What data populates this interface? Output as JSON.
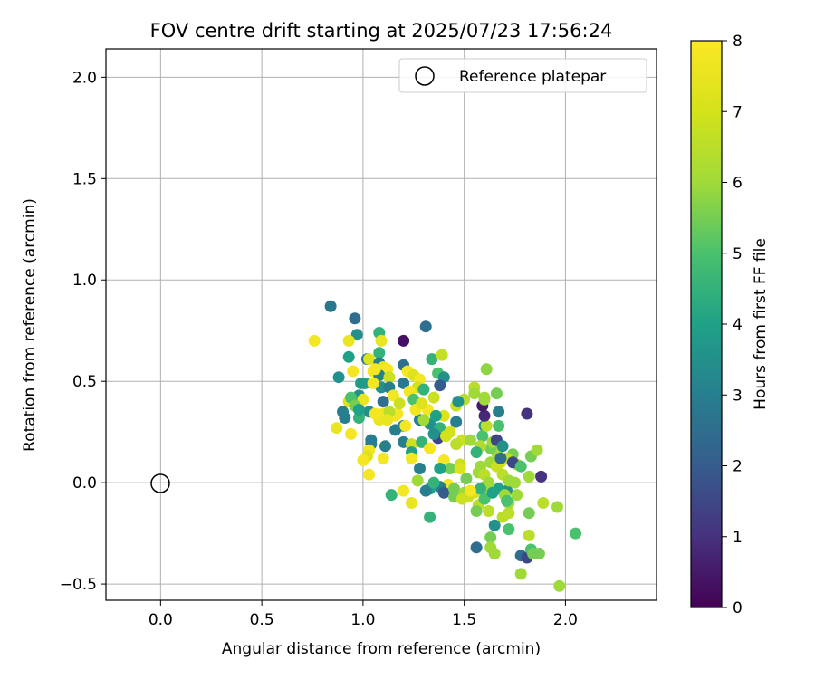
{
  "chart_data": {
    "type": "scatter",
    "title": "FOV centre drift starting at 2025/07/23 17:56:24",
    "xlabel": "Angular distance from reference (arcmin)",
    "ylabel": "Rotation from reference (arcmin)",
    "xlim": [
      -0.27,
      2.45
    ],
    "ylim": [
      -0.58,
      2.14
    ],
    "xticks": [
      0.0,
      0.5,
      1.0,
      1.5,
      2.0
    ],
    "xtick_labels": [
      "0.0",
      "0.5",
      "1.0",
      "1.5",
      "2.0"
    ],
    "yticks": [
      -0.5,
      0.0,
      0.5,
      1.0,
      1.5,
      2.0
    ],
    "ytick_labels": [
      "−0.5",
      "0.0",
      "0.5",
      "1.0",
      "1.5",
      "2.0"
    ],
    "grid": true,
    "legend": {
      "location": "upper right",
      "entries": [
        "Reference platepar"
      ]
    },
    "colorbar": {
      "label": "Hours from first FF file",
      "range": [
        0,
        8
      ],
      "ticks": [
        "0",
        "1",
        "2",
        "3",
        "4",
        "5",
        "6",
        "7",
        "8"
      ],
      "colormap": "viridis"
    },
    "reference_point": {
      "x": 0.0,
      "y": 0.0,
      "name": "Reference platepar"
    },
    "points": [
      [
        0.84,
        0.87,
        2.8
      ],
      [
        0.96,
        0.81,
        2.5
      ],
      [
        1.31,
        0.77,
        2.5
      ],
      [
        1.08,
        0.74,
        4.5
      ],
      [
        0.97,
        0.73,
        3.5
      ],
      [
        0.76,
        0.7,
        7.8
      ],
      [
        0.93,
        0.7,
        7.5
      ],
      [
        1.09,
        0.7,
        7.5
      ],
      [
        1.2,
        0.7,
        0.3
      ],
      [
        1.08,
        0.64,
        4.5
      ],
      [
        1.34,
        0.61,
        4.5
      ],
      [
        1.39,
        0.63,
        6.7
      ],
      [
        0.93,
        0.62,
        4.0
      ],
      [
        1.02,
        0.61,
        3.0
      ],
      [
        1.03,
        0.61,
        7.2
      ],
      [
        1.08,
        0.59,
        3.0
      ],
      [
        1.1,
        0.57,
        7.5
      ],
      [
        1.2,
        0.58,
        2.5
      ],
      [
        1.12,
        0.56,
        7.8
      ],
      [
        0.95,
        0.55,
        7.8
      ],
      [
        1.05,
        0.55,
        7.8
      ],
      [
        1.08,
        0.53,
        3.0
      ],
      [
        1.13,
        0.52,
        6.8
      ],
      [
        0.88,
        0.52,
        3.5
      ],
      [
        1.22,
        0.55,
        7.8
      ],
      [
        1.25,
        0.53,
        7.2
      ],
      [
        1.37,
        0.54,
        5.0
      ],
      [
        1.4,
        0.52,
        3.5
      ],
      [
        1.28,
        0.51,
        7.8
      ],
      [
        1.2,
        0.49,
        2.8
      ],
      [
        1.01,
        0.49,
        4.0
      ],
      [
        1.09,
        0.47,
        3.5
      ],
      [
        1.13,
        0.47,
        3.0
      ],
      [
        1.27,
        0.47,
        7.0
      ],
      [
        1.3,
        0.46,
        4.5
      ],
      [
        1.38,
        0.48,
        2.0
      ],
      [
        1.23,
        0.45,
        7.8
      ],
      [
        0.98,
        0.43,
        3.5
      ],
      [
        1.15,
        0.43,
        7.8
      ],
      [
        1.0,
        0.41,
        7.5
      ],
      [
        1.25,
        0.41,
        5.0
      ],
      [
        1.35,
        0.42,
        6.8
      ],
      [
        1.46,
        0.38,
        6.8
      ],
      [
        0.93,
        0.4,
        7.2
      ],
      [
        1.03,
        0.35,
        3.5
      ],
      [
        1.1,
        0.34,
        7.8
      ],
      [
        1.17,
        0.34,
        7.8
      ],
      [
        1.32,
        0.36,
        7.8
      ],
      [
        1.08,
        0.31,
        7.5
      ],
      [
        1.4,
        0.33,
        7.2
      ],
      [
        0.98,
        0.32,
        4.5
      ],
      [
        0.9,
        0.35,
        3.0
      ],
      [
        0.91,
        0.32,
        3.0
      ],
      [
        0.87,
        0.27,
        7.5
      ],
      [
        1.2,
        0.28,
        3.0
      ],
      [
        1.16,
        0.26,
        3.0
      ],
      [
        1.28,
        0.31,
        3.0
      ],
      [
        1.33,
        0.29,
        3.5
      ],
      [
        1.36,
        0.33,
        4.0
      ],
      [
        1.38,
        0.27,
        4.5
      ],
      [
        1.43,
        0.25,
        7.0
      ],
      [
        1.49,
        0.21,
        6.8
      ],
      [
        1.46,
        0.3,
        3.0
      ],
      [
        1.37,
        0.22,
        1.5
      ],
      [
        0.94,
        0.24,
        7.8
      ],
      [
        1.04,
        0.21,
        3.0
      ],
      [
        1.04,
        0.19,
        3.0
      ],
      [
        1.11,
        0.18,
        3.0
      ],
      [
        1.2,
        0.2,
        3.0
      ],
      [
        1.24,
        0.19,
        6.8
      ],
      [
        1.29,
        0.2,
        4.5
      ],
      [
        1.24,
        0.15,
        4.0
      ],
      [
        1.33,
        0.17,
        7.8
      ],
      [
        1.03,
        0.16,
        7.8
      ],
      [
        1.02,
        0.13,
        7.2
      ],
      [
        1.0,
        0.11,
        7.8
      ],
      [
        1.1,
        0.12,
        7.8
      ],
      [
        1.24,
        0.12,
        7.8
      ],
      [
        1.28,
        0.07,
        3.0
      ],
      [
        1.4,
        0.11,
        7.8
      ],
      [
        1.43,
        0.07,
        5.5
      ],
      [
        1.38,
        0.07,
        4.0
      ],
      [
        1.48,
        0.09,
        6.8
      ],
      [
        1.51,
        0.02,
        5.5
      ],
      [
        1.03,
        0.04,
        7.8
      ],
      [
        1.42,
        -0.01,
        7.8
      ],
      [
        1.38,
        -0.02,
        3.0
      ],
      [
        1.33,
        -0.03,
        4.0
      ],
      [
        1.31,
        -0.04,
        3.0
      ],
      [
        1.2,
        -0.04,
        7.8
      ],
      [
        1.14,
        -0.06,
        4.5
      ],
      [
        1.24,
        -0.1,
        7.5
      ],
      [
        1.33,
        -0.17,
        4.5
      ],
      [
        1.4,
        -0.05,
        2.0
      ],
      [
        1.45,
        -0.03,
        5.5
      ],
      [
        1.5,
        -0.05,
        6.0
      ],
      [
        1.52,
        -0.07,
        6.8
      ],
      [
        1.55,
        -0.05,
        7.0
      ],
      [
        1.57,
        -0.11,
        6.5
      ],
      [
        1.56,
        -0.14,
        5.5
      ],
      [
        1.6,
        -0.08,
        5.0
      ],
      [
        1.62,
        -0.14,
        6.5
      ],
      [
        1.56,
        -0.32,
        2.5
      ],
      [
        1.63,
        -0.27,
        5.5
      ],
      [
        1.63,
        -0.32,
        6.0
      ],
      [
        1.65,
        -0.35,
        6.0
      ],
      [
        1.65,
        -0.21,
        3.5
      ],
      [
        1.69,
        -0.17,
        6.5
      ],
      [
        1.72,
        -0.15,
        6.5
      ],
      [
        1.72,
        -0.23,
        5.0
      ],
      [
        1.71,
        -0.04,
        3.5
      ],
      [
        1.67,
        -0.03,
        4.0
      ],
      [
        1.7,
        -0.06,
        6.0
      ],
      [
        1.76,
        -0.06,
        6.0
      ],
      [
        1.72,
        -0.1,
        6.0
      ],
      [
        1.78,
        -0.36,
        2.5
      ],
      [
        1.78,
        -0.45,
        6.0
      ],
      [
        1.81,
        -0.37,
        1.5
      ],
      [
        1.82,
        -0.26,
        6.5
      ],
      [
        1.83,
        -0.33,
        5.0
      ],
      [
        1.82,
        -0.15,
        5.5
      ],
      [
        1.84,
        -0.35,
        5.5
      ],
      [
        1.87,
        -0.35,
        5.5
      ],
      [
        1.89,
        -0.1,
        6.5
      ],
      [
        1.96,
        -0.12,
        6.0
      ],
      [
        1.97,
        -0.51,
        6.0
      ],
      [
        2.05,
        -0.25,
        5.0
      ],
      [
        1.88,
        0.03,
        1.0
      ],
      [
        1.82,
        0.03,
        6.0
      ],
      [
        1.83,
        0.13,
        5.5
      ],
      [
        1.86,
        0.16,
        6.0
      ],
      [
        1.81,
        0.34,
        1.0
      ],
      [
        1.74,
        0.14,
        5.5
      ],
      [
        1.76,
        0.09,
        6.0
      ],
      [
        1.71,
        0.12,
        6.5
      ],
      [
        1.68,
        0.1,
        7.0
      ],
      [
        1.66,
        0.15,
        6.0
      ],
      [
        1.63,
        0.17,
        5.5
      ],
      [
        1.64,
        0.2,
        6.0
      ],
      [
        1.66,
        0.21,
        1.5
      ],
      [
        1.6,
        0.28,
        3.5
      ],
      [
        1.59,
        0.23,
        5.0
      ],
      [
        1.61,
        0.28,
        6.5
      ],
      [
        1.6,
        0.33,
        0.8
      ],
      [
        1.59,
        0.38,
        0.5
      ],
      [
        1.6,
        0.41,
        6.0
      ],
      [
        1.61,
        0.56,
        5.8
      ],
      [
        1.66,
        0.44,
        5.5
      ],
      [
        1.67,
        0.28,
        5.0
      ],
      [
        1.67,
        0.35,
        3.0
      ],
      [
        1.6,
        0.42,
        6.0
      ],
      [
        1.55,
        0.47,
        6.5
      ],
      [
        1.55,
        0.44,
        6.0
      ],
      [
        1.5,
        0.41,
        6.5
      ],
      [
        1.47,
        0.4,
        3.5
      ],
      [
        1.58,
        0.18,
        6.3
      ],
      [
        1.56,
        0.15,
        4.5
      ],
      [
        1.53,
        0.21,
        6.0
      ],
      [
        1.58,
        0.08,
        6.0
      ],
      [
        1.57,
        0.05,
        6.0
      ],
      [
        1.6,
        0.04,
        6.5
      ],
      [
        1.63,
        0.1,
        6.0
      ],
      [
        1.66,
        0.08,
        6.8
      ],
      [
        1.69,
        0.04,
        6.5
      ],
      [
        1.72,
        0.01,
        6.0
      ],
      [
        1.75,
        0.0,
        6.0
      ],
      [
        1.62,
        0.0,
        6.0
      ],
      [
        1.6,
        -0.02,
        6.0
      ],
      [
        1.64,
        -0.05,
        4.0
      ],
      [
        1.58,
        -0.03,
        4.5
      ],
      [
        1.68,
        0.12,
        2.5
      ],
      [
        1.69,
        0.18,
        3.5
      ],
      [
        1.74,
        0.1,
        1.5
      ],
      [
        1.78,
        0.08,
        5.0
      ],
      [
        1.71,
        -0.09,
        5.0
      ],
      [
        1.48,
        0.07,
        7.2
      ],
      [
        1.46,
        0.19,
        6.5
      ],
      [
        1.53,
        -0.04,
        7.8
      ],
      [
        1.45,
        -0.07,
        5.5
      ],
      [
        1.49,
        -0.08,
        6.8
      ],
      [
        1.35,
        0.0,
        4.5
      ],
      [
        1.27,
        0.01,
        6.0
      ],
      [
        1.21,
        0.28,
        7.8
      ],
      [
        1.16,
        0.33,
        7.8
      ],
      [
        1.26,
        0.36,
        7.8
      ],
      [
        1.29,
        0.39,
        7.2
      ],
      [
        1.18,
        0.39,
        6.8
      ],
      [
        1.41,
        0.23,
        7.0
      ],
      [
        1.3,
        0.31,
        6.0
      ],
      [
        1.35,
        0.24,
        3.5
      ],
      [
        1.13,
        0.35,
        6.5
      ],
      [
        1.12,
        0.31,
        7.5
      ],
      [
        1.06,
        0.56,
        7.8
      ],
      [
        1.05,
        0.49,
        7.8
      ],
      [
        0.99,
        0.49,
        3.8
      ],
      [
        0.94,
        0.42,
        5.0
      ],
      [
        0.96,
        0.38,
        5.5
      ],
      [
        0.98,
        0.36,
        4.0
      ],
      [
        1.06,
        0.34,
        7.8
      ],
      [
        1.1,
        0.4,
        2.5
      ]
    ]
  }
}
